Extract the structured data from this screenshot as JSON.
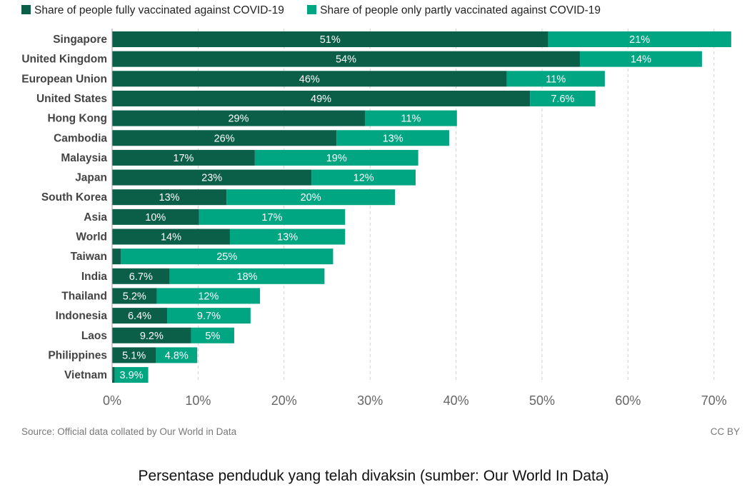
{
  "chart_data": {
    "type": "bar",
    "orientation": "horizontal",
    "stacked": true,
    "categories": [
      "Singapore",
      "United Kingdom",
      "European Union",
      "United States",
      "Hong Kong",
      "Cambodia",
      "Malaysia",
      "Japan",
      "South Korea",
      "Asia",
      "World",
      "Taiwan",
      "India",
      "Thailand",
      "Indonesia",
      "Laos",
      "Philippines",
      "Vietnam"
    ],
    "series": [
      {
        "name": "Share of people fully vaccinated against COVID-19",
        "color": "#0b5e48",
        "values": [
          50.7,
          54.4,
          45.9,
          48.6,
          29.4,
          26.1,
          16.6,
          23.2,
          13.3,
          10.1,
          13.7,
          1.0,
          6.7,
          5.2,
          6.4,
          9.2,
          5.1,
          0.3
        ],
        "labels": [
          "51%",
          "54%",
          "46%",
          "49%",
          "29%",
          "26%",
          "17%",
          "23%",
          "13%",
          "10%",
          "14%",
          "",
          "6.7%",
          "5.2%",
          "6.4%",
          "9.2%",
          "5.1%",
          ""
        ]
      },
      {
        "name": "Share of people only partly vaccinated against COVID-19",
        "color": "#00a582",
        "values": [
          21.3,
          14.2,
          11.4,
          7.6,
          10.7,
          13.1,
          19.0,
          12.1,
          19.6,
          17.0,
          13.4,
          24.7,
          18.0,
          12.0,
          9.7,
          5.0,
          4.8,
          3.9
        ],
        "labels": [
          "21%",
          "14%",
          "11%",
          "7.6%",
          "11%",
          "13%",
          "19%",
          "12%",
          "20%",
          "17%",
          "13%",
          "25%",
          "18%",
          "12%",
          "9.7%",
          "5%",
          "4.8%",
          "3.9%"
        ]
      }
    ],
    "xlim": [
      0,
      72
    ],
    "ticks": [
      0,
      10,
      20,
      30,
      40,
      50,
      60,
      70
    ],
    "tick_labels": [
      "0%",
      "10%",
      "20%",
      "30%",
      "40%",
      "50%",
      "60%",
      "70%"
    ],
    "grid": "vertical dashed",
    "legend": "top-left"
  },
  "source": "Source: Official data collated by Our World in Data",
  "license": "CC BY",
  "caption": "Persentase penduduk yang telah divaksin (sumber: Our World In Data)"
}
